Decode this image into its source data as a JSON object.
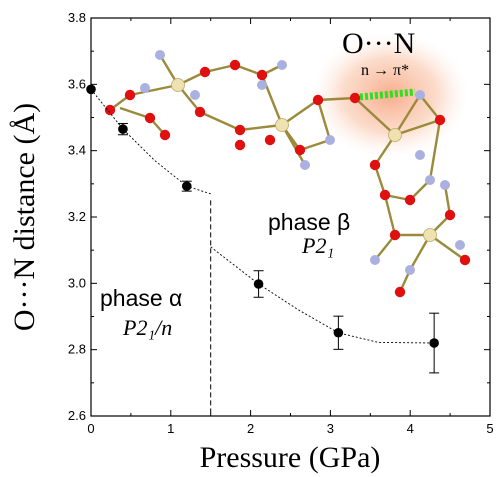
{
  "chart_data": {
    "type": "scatter",
    "xlabel": "Pressure (GPa)",
    "ylabel": "O···N distance (Å)",
    "xlim": [
      0,
      5
    ],
    "ylim": [
      2.6,
      3.8
    ],
    "x_ticks": [
      0,
      1,
      2,
      3,
      4,
      5
    ],
    "y_ticks": [
      2.6,
      2.8,
      3.0,
      3.2,
      3.4,
      3.6,
      3.8
    ],
    "x_tick_labels": [
      "0",
      "1",
      "2",
      "3",
      "4",
      "5"
    ],
    "y_tick_labels": [
      "2.6",
      "2.8",
      "3.0",
      "3.2",
      "3.4",
      "3.6",
      "3.8"
    ],
    "series": [
      {
        "x": [
          0.0,
          0.4,
          1.2,
          2.1,
          3.1,
          4.3
        ],
        "y": [
          3.585,
          3.465,
          3.293,
          2.998,
          2.851,
          2.82
        ],
        "yerr": [
          0.0,
          0.017,
          0.015,
          0.04,
          0.05,
          0.09
        ],
        "color": "#000000"
      }
    ],
    "fit_curves": [
      {
        "x": [
          0.0,
          0.4,
          0.8,
          1.2,
          1.5
        ],
        "y": [
          3.585,
          3.465,
          3.37,
          3.293,
          3.27
        ]
      },
      {
        "x": [
          1.5,
          2.1,
          2.6,
          3.1,
          3.6,
          4.3
        ],
        "y": [
          3.11,
          2.998,
          2.92,
          2.851,
          2.822,
          2.82
        ]
      }
    ],
    "phase_boundary_x": 1.5,
    "annotations": [
      {
        "text": "phase α",
        "group": "P2₁/n"
      },
      {
        "text": "phase β",
        "group": "P2₁"
      }
    ],
    "grid": false
  },
  "inset": {
    "title": "O···N",
    "subtitle": "n → π*",
    "colors": {
      "oxygen": "#e01010",
      "nitrogen": "#aab0e0",
      "metal": "#efe2b0",
      "interaction": "#33dd22",
      "glow": "#f8b89a"
    }
  }
}
